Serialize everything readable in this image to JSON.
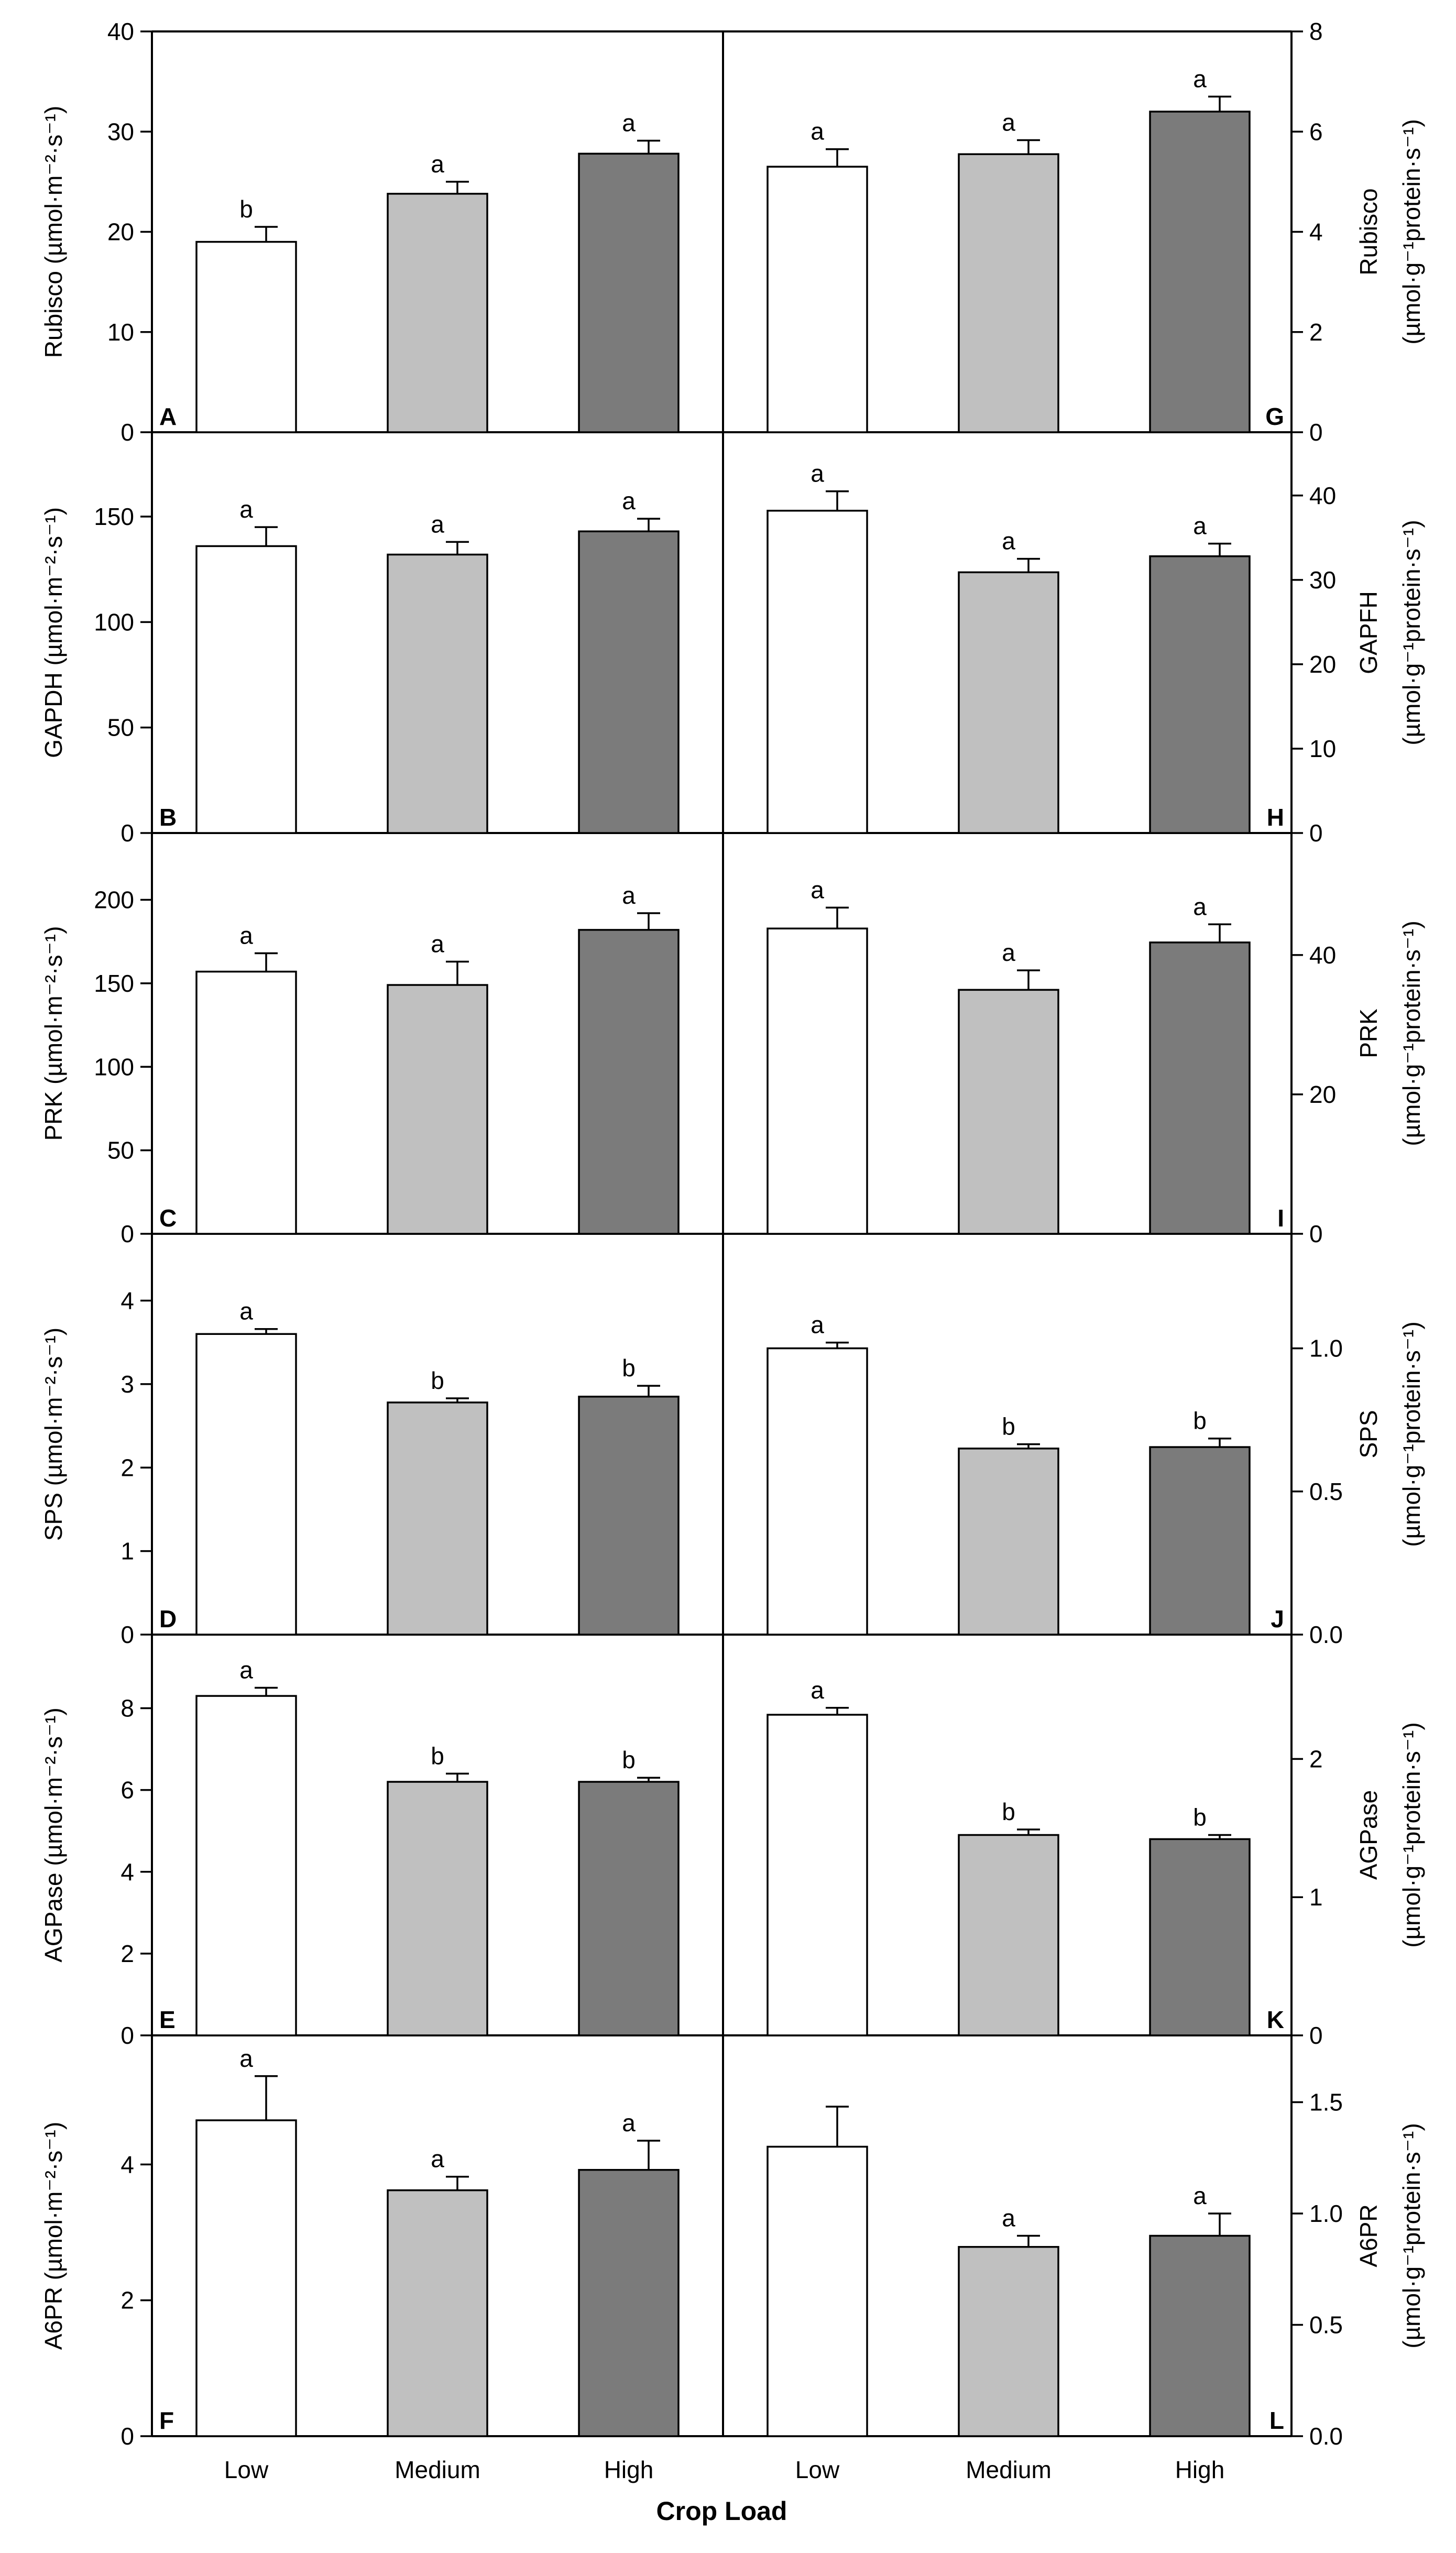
{
  "chart_data": {
    "type": "bar",
    "title": "",
    "xlabel": "Crop Load",
    "categories": [
      "Low",
      "Medium",
      "High"
    ],
    "colors": {
      "Low": "#ffffff",
      "Medium": "#c0c0c0",
      "High": "#7b7b7b",
      "axis": "#000000"
    },
    "panels": [
      {
        "label": "A",
        "row": 0,
        "side": "left",
        "ylabel": [
          "Rubisco (µmol·m⁻²·s⁻¹)"
        ],
        "ylim": [
          0,
          40
        ],
        "ticks": [
          "0",
          "10",
          "20",
          "30",
          "40"
        ],
        "values": [
          19.0,
          23.8,
          27.8
        ],
        "errors": [
          1.5,
          1.2,
          1.3
        ],
        "sig": [
          "b",
          "a",
          "a"
        ]
      },
      {
        "label": "G",
        "row": 0,
        "side": "right",
        "ylabel": [
          "Rubisco",
          "(µmol·g⁻¹protein·s⁻¹)"
        ],
        "ylim": [
          0,
          8
        ],
        "ticks": [
          "0",
          "2",
          "4",
          "6",
          "8"
        ],
        "values": [
          5.3,
          5.55,
          6.4
        ],
        "errors": [
          0.35,
          0.28,
          0.3
        ],
        "sig": [
          "a",
          "a",
          "a"
        ]
      },
      {
        "label": "B",
        "row": 1,
        "side": "left",
        "ylabel": [
          "GAPDH (µmol·m⁻²·s⁻¹)"
        ],
        "ylim": [
          0,
          190
        ],
        "ticks": [
          "0",
          "50",
          "100",
          "150"
        ],
        "values": [
          136,
          132,
          143
        ],
        "errors": [
          9,
          6,
          6
        ],
        "sig": [
          "a",
          "a",
          "a"
        ]
      },
      {
        "label": "H",
        "row": 1,
        "side": "right",
        "ylabel": [
          "GAPFH",
          "(µmol·g⁻¹protein·s⁻¹)"
        ],
        "ylim": [
          0,
          47.5
        ],
        "ticks": [
          "0",
          "10",
          "20",
          "30",
          "40"
        ],
        "values": [
          38.2,
          30.9,
          32.8
        ],
        "errors": [
          2.3,
          1.6,
          1.5
        ],
        "sig": [
          "a",
          "a",
          "a"
        ]
      },
      {
        "label": "C",
        "row": 2,
        "side": "left",
        "ylabel": [
          "PRK (µmol·m⁻²·s⁻¹)"
        ],
        "ylim": [
          0,
          240
        ],
        "ticks": [
          "0",
          "50",
          "100",
          "150",
          "200"
        ],
        "values": [
          157,
          149,
          182
        ],
        "errors": [
          11,
          14,
          10
        ],
        "sig": [
          "a",
          "a",
          "a"
        ]
      },
      {
        "label": "I",
        "row": 2,
        "side": "right",
        "ylabel": [
          "PRK",
          "(µmol·g⁻¹protein·s⁻¹)"
        ],
        "ylim": [
          0,
          57.5
        ],
        "ticks": [
          "0",
          "20",
          "40"
        ],
        "values": [
          43.8,
          35.0,
          41.8
        ],
        "errors": [
          3.0,
          2.8,
          2.6
        ],
        "sig": [
          "a",
          "a",
          "a"
        ]
      },
      {
        "label": "D",
        "row": 3,
        "side": "left",
        "ylabel": [
          "SPS (µmol·m⁻²·s⁻¹)"
        ],
        "ylim": [
          0,
          4.8
        ],
        "ticks": [
          "0",
          "1",
          "2",
          "3",
          "4"
        ],
        "values": [
          3.6,
          2.78,
          2.85
        ],
        "errors": [
          0.06,
          0.05,
          0.13
        ],
        "sig": [
          "a",
          "b",
          "b"
        ]
      },
      {
        "label": "J",
        "row": 3,
        "side": "right",
        "ylabel": [
          "SPS",
          "(µmol·g⁻¹protein·s⁻¹)"
        ],
        "ylim": [
          0,
          1.4
        ],
        "ticks": [
          "0.0",
          "0.5",
          "1.0"
        ],
        "values": [
          1.0,
          0.65,
          0.655
        ],
        "errors": [
          0.02,
          0.015,
          0.03
        ],
        "sig": [
          "a",
          "b",
          "b"
        ]
      },
      {
        "label": "E",
        "row": 4,
        "side": "left",
        "ylabel": [
          "AGPase (µmol·m⁻²·s⁻¹)"
        ],
        "ylim": [
          0,
          9.8
        ],
        "ticks": [
          "0",
          "2",
          "4",
          "6",
          "8"
        ],
        "values": [
          8.3,
          6.2,
          6.2
        ],
        "errors": [
          0.2,
          0.2,
          0.1
        ],
        "sig": [
          "a",
          "b",
          "b"
        ]
      },
      {
        "label": "K",
        "row": 4,
        "side": "right",
        "ylabel": [
          "AGPase",
          "(µmol·g⁻¹protein·s⁻¹)"
        ],
        "ylim": [
          0,
          2.9
        ],
        "ticks": [
          "0",
          "1",
          "2"
        ],
        "values": [
          2.32,
          1.45,
          1.42
        ],
        "errors": [
          0.05,
          0.04,
          0.03
        ],
        "sig": [
          "a",
          "b",
          "b"
        ]
      },
      {
        "label": "F",
        "row": 5,
        "side": "left",
        "ylabel": [
          "A6PR (µmol·m⁻²·s⁻¹)"
        ],
        "ylim": [
          0,
          5.9
        ],
        "ticks": [
          "0",
          "2",
          "4"
        ],
        "values": [
          4.65,
          3.62,
          3.92
        ],
        "errors": [
          0.65,
          0.2,
          0.43
        ],
        "sig": [
          "a",
          "a",
          "a"
        ]
      },
      {
        "label": "L",
        "row": 5,
        "side": "right",
        "ylabel": [
          "A6PR",
          "(µmol·g⁻¹protein·s⁻¹)"
        ],
        "ylim": [
          0,
          1.8
        ],
        "ticks": [
          "0.0",
          "0.5",
          "1.0",
          "1.5"
        ],
        "values": [
          1.3,
          0.85,
          0.9
        ],
        "errors": [
          0.18,
          0.05,
          0.1
        ],
        "sig": [
          "",
          "a",
          "a"
        ]
      }
    ]
  }
}
